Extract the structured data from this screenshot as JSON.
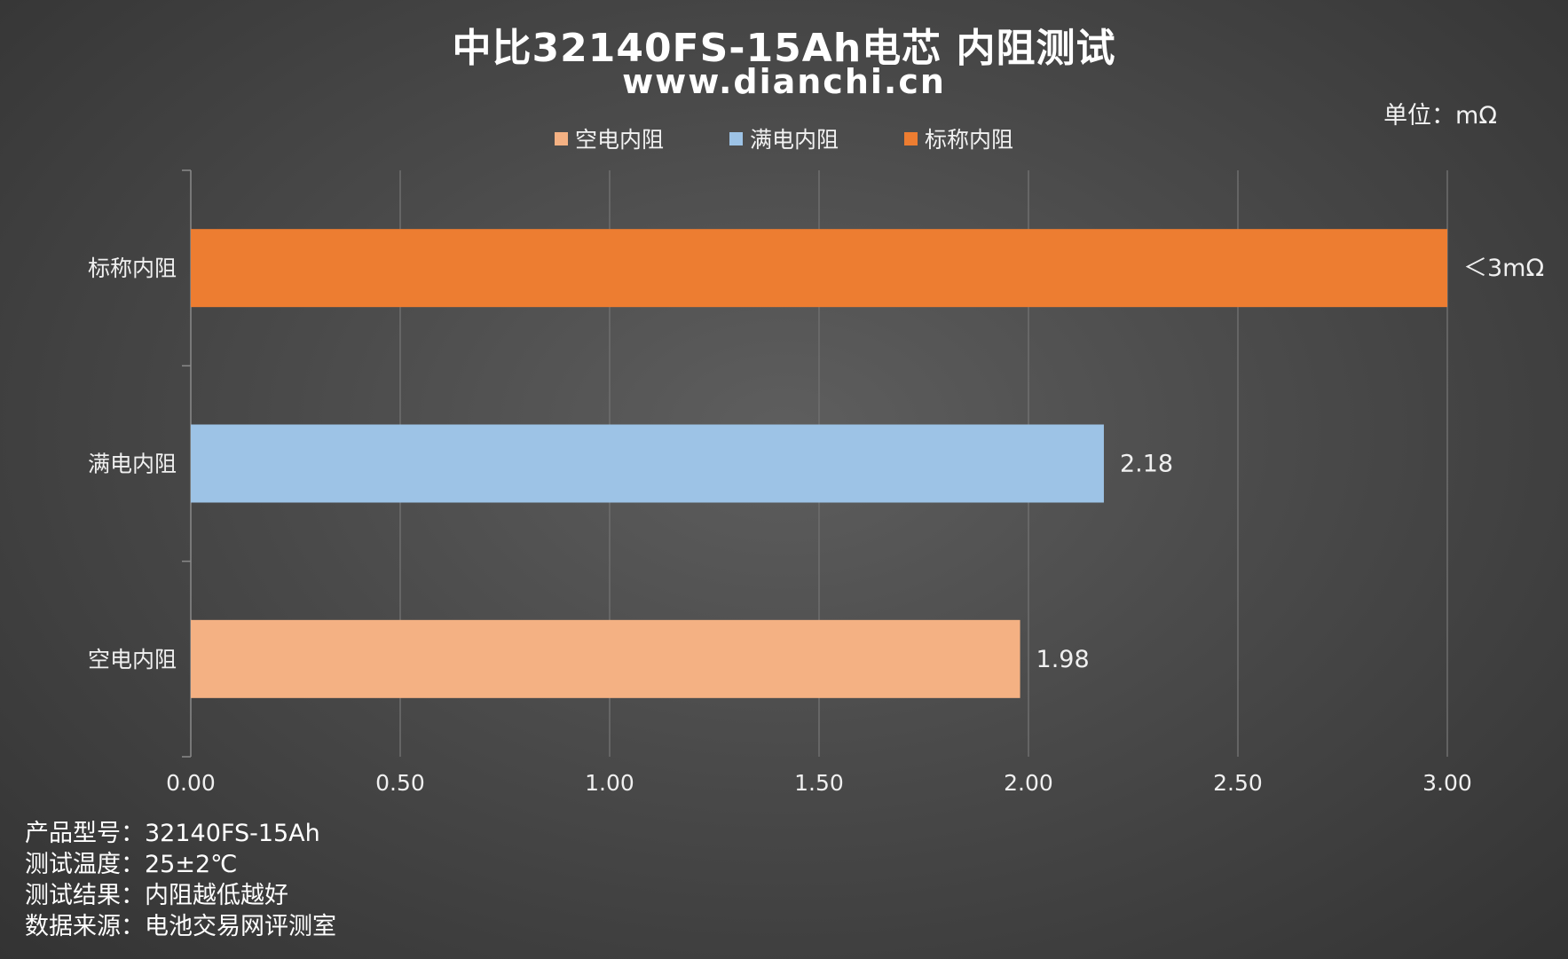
{
  "title": "中比32140FS-15Ah电芯 内阻测试",
  "subtitle": "www.dianchi.cn",
  "unit_label": "单位：mΩ",
  "footnotes": [
    {
      "label": "产品型号：",
      "value": "32140FS-15Ah"
    },
    {
      "label": "测试温度：",
      "value": "25±2℃"
    },
    {
      "label": "测试结果：",
      "value": "内阻越低越好"
    },
    {
      "label": "数据来源：",
      "value": "电池交易网评测室"
    }
  ],
  "colors": {
    "empty": "#F4B183",
    "full": "#9DC3E6",
    "nominal": "#ED7D31",
    "grid": "#6e6e6e",
    "axis": "#8a8a8a",
    "text": "#f0f0f0"
  },
  "chart_data": {
    "type": "bar",
    "orientation": "horizontal",
    "title": "中比32140FS-15Ah电芯 内阻测试",
    "legend": [
      "空电内阻",
      "满电内阻",
      "标称内阻"
    ],
    "legend_position": "top",
    "categories": [
      "标称内阻",
      "满电内阻",
      "空电内阻"
    ],
    "values": [
      3.0,
      2.18,
      1.98
    ],
    "data_labels": [
      "＜3mΩ",
      "2.18",
      "1.98"
    ],
    "bar_colors": [
      "#ED7D31",
      "#9DC3E6",
      "#F4B183"
    ],
    "xlim": [
      0,
      3
    ],
    "xticks": [
      0,
      0.5,
      1.0,
      1.5,
      2.0,
      2.5,
      3.0
    ],
    "xtick_labels": [
      "0.00",
      "0.50",
      "1.00",
      "1.50",
      "2.00",
      "2.50",
      "3.00"
    ],
    "grid": true
  }
}
